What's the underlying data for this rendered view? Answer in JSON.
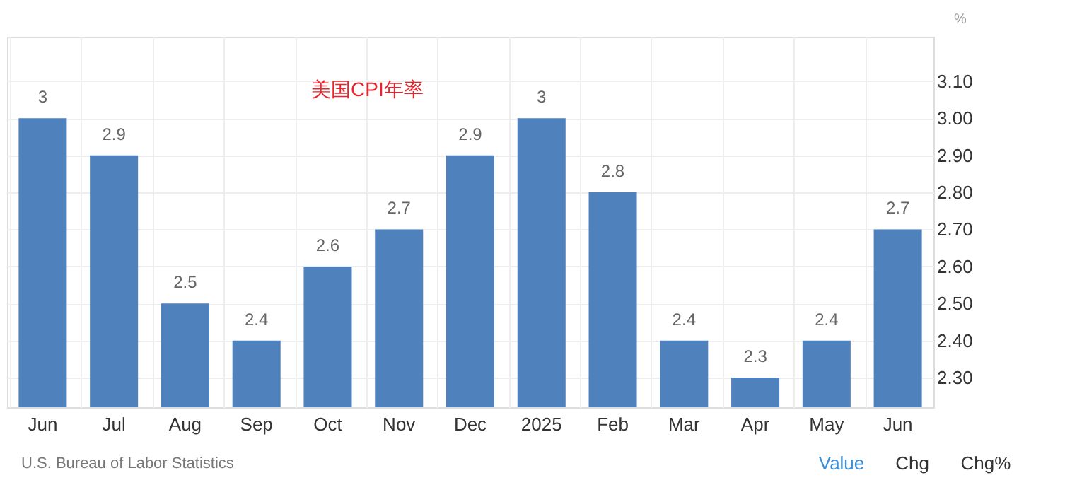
{
  "chart_data": {
    "type": "bar",
    "title": "美国CPI年率",
    "ylabel": "%",
    "categories": [
      "Jun",
      "Jul",
      "Aug",
      "Sep",
      "Oct",
      "Nov",
      "Dec",
      "2025",
      "Feb",
      "Mar",
      "Apr",
      "May",
      "Jun"
    ],
    "values": [
      3,
      2.9,
      2.5,
      2.4,
      2.6,
      2.7,
      2.9,
      3,
      2.8,
      2.4,
      2.3,
      2.4,
      2.7
    ],
    "color": "#4f81bd",
    "ylim": [
      2.22,
      3.22
    ],
    "yticks": [
      {
        "value": 2.3,
        "label": "2.30"
      },
      {
        "value": 2.4,
        "label": "2.40"
      },
      {
        "value": 2.5,
        "label": "2.50"
      },
      {
        "value": 2.6,
        "label": "2.60"
      },
      {
        "value": 2.7,
        "label": "2.70"
      },
      {
        "value": 2.8,
        "label": "2.80"
      },
      {
        "value": 2.9,
        "label": "2.90"
      },
      {
        "value": 3.0,
        "label": "3.00"
      },
      {
        "value": 3.1,
        "label": "3.10"
      }
    ],
    "grid": true,
    "data_labels": true,
    "annotations": [
      "U.S. Bureau of Labor Statistics",
      "Value",
      "Chg",
      "Chg%"
    ]
  }
}
